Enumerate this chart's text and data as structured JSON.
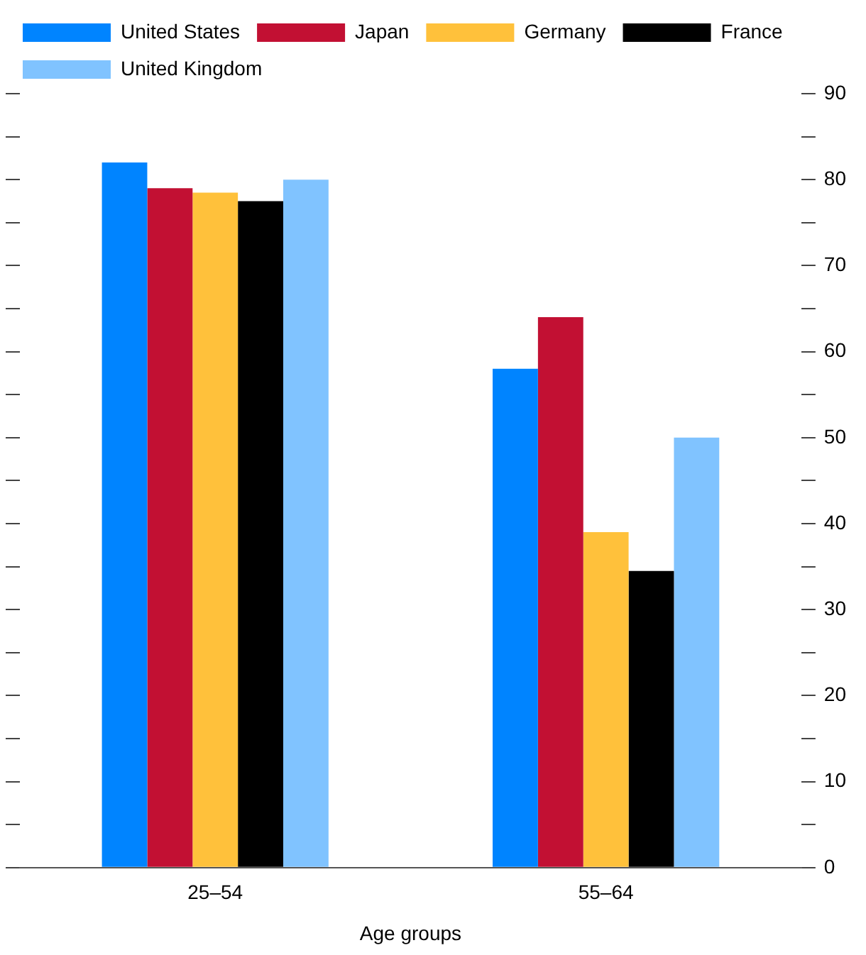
{
  "chart_data": {
    "type": "bar",
    "xlabel": "Age groups",
    "categories": [
      "25–54",
      "55–64"
    ],
    "series": [
      {
        "name": "United States",
        "color": "#0084ff",
        "values": [
          82,
          58
        ]
      },
      {
        "name": "Japan",
        "color": "#c21033",
        "values": [
          79,
          64
        ]
      },
      {
        "name": "Germany",
        "color": "#ffc13b",
        "values": [
          78.5,
          39
        ]
      },
      {
        "name": "France",
        "color": "#000000",
        "values": [
          77.5,
          34.5
        ]
      },
      {
        "name": "United Kingdom",
        "color": "#80c3ff",
        "values": [
          80,
          50
        ]
      }
    ],
    "ylim": [
      0,
      90
    ],
    "yticks": [
      0,
      {
        "value": 5,
        "label": null
      },
      10,
      {
        "value": 15,
        "label": null
      },
      20,
      {
        "value": 25,
        "label": null
      },
      30,
      {
        "value": 35,
        "label": null
      },
      40,
      {
        "value": 45,
        "label": null
      },
      50,
      {
        "value": 55,
        "label": null
      },
      60,
      {
        "value": 65,
        "label": null
      },
      70,
      {
        "value": 75,
        "label": null
      },
      80,
      {
        "value": 85,
        "label": null
      },
      90
    ],
    "grid": false,
    "legend": "top"
  }
}
